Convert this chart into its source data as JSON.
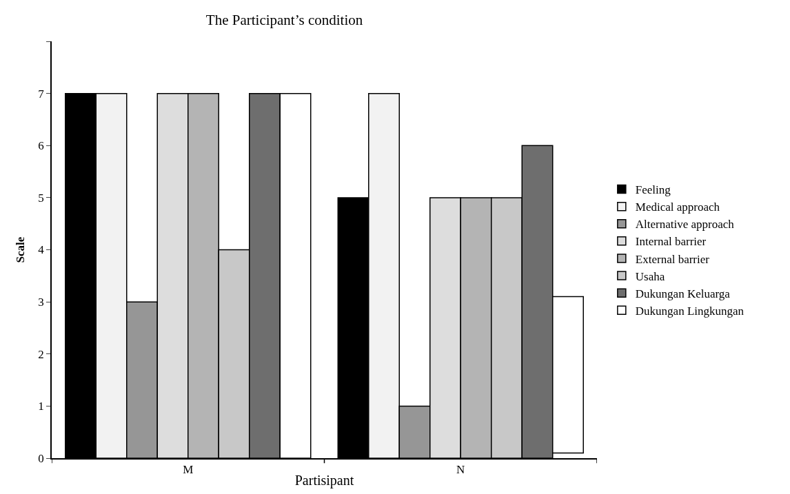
{
  "chart_data": {
    "type": "bar",
    "title": "The Participant’s condition",
    "xlabel": "Partisipant",
    "ylabel": "Scale",
    "categories": [
      "M",
      "N"
    ],
    "series": [
      {
        "name": "Feeling",
        "color": "#000000",
        "values": [
          7,
          5
        ]
      },
      {
        "name": "Medical approach",
        "color": "#f2f2f2",
        "values": [
          7,
          7
        ]
      },
      {
        "name": "Alternative approach",
        "color": "#969696",
        "values": [
          3,
          1
        ]
      },
      {
        "name": "Internal barrier",
        "color": "#dddddd",
        "values": [
          7,
          5
        ]
      },
      {
        "name": "External barrier",
        "color": "#b4b4b4",
        "values": [
          7,
          5
        ]
      },
      {
        "name": "Usaha",
        "color": "#c8c8c8",
        "values": [
          4,
          5
        ]
      },
      {
        "name": "Dukungan Keluarga",
        "color": "#6e6e6e",
        "values": [
          7,
          6
        ]
      },
      {
        "name": "Dukungan Lingkungan",
        "color": "#ffffff",
        "values": [
          7,
          3.0
        ],
        "base": [
          0,
          0.1
        ]
      }
    ],
    "ylim": [
      0,
      8
    ],
    "yticks": [
      {
        "value": 0,
        "label": "0"
      },
      1,
      2,
      3,
      4,
      5,
      6,
      7,
      {
        "value": 8,
        "label": null
      }
    ],
    "grid": false,
    "legend": "right"
  }
}
